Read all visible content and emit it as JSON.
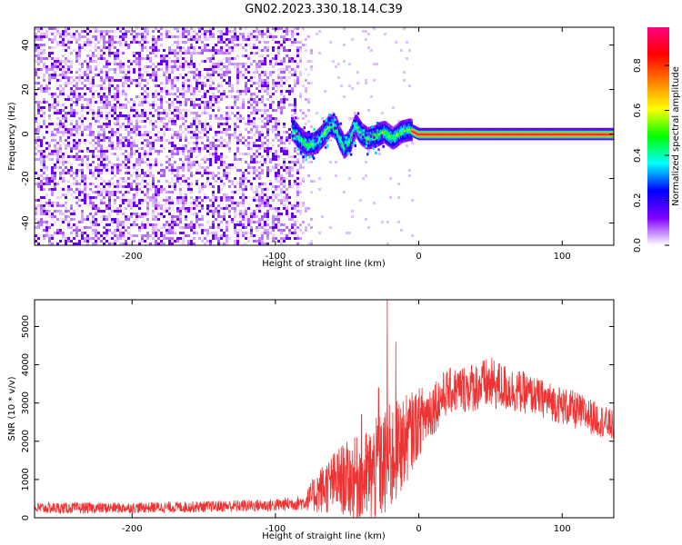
{
  "title": "GN02.2023.330.18.14.C39",
  "chart_data": [
    {
      "type": "heatmap",
      "xlabel": "Height of straight line (km)",
      "ylabel": "Frequency (Hz)",
      "xlim": [
        -268,
        136
      ],
      "ylim": [
        -50,
        48
      ],
      "x_ticks": [
        -200,
        -100,
        0,
        100
      ],
      "y_ticks": [
        -40,
        -20,
        0,
        20,
        40
      ],
      "x_tick_labels": [
        "-200",
        "-100",
        "0",
        "100"
      ],
      "y_tick_labels": [
        "-40",
        "-20",
        "0",
        "20",
        "40"
      ],
      "grid": false,
      "colorbar": {
        "label": "Normalized spectral amplitude",
        "range": [
          0,
          0.97
        ],
        "ticks": [
          0,
          0.2,
          0.4,
          0.6,
          0.8
        ],
        "tick_labels": [
          "0.0",
          "0.2",
          "0.4",
          "0.6",
          "0.8"
        ],
        "colors": [
          "#ffffff",
          "#8000ff",
          "#0000ff",
          "#00ffff",
          "#00ff00",
          "#ffff00",
          "#ff8000",
          "#ff0000",
          "#ff0080"
        ]
      },
      "regions": [
        {
          "x_range": [
            -268,
            -85
          ],
          "freq_range": [
            -50,
            48
          ],
          "amplitude": [
            0.0,
            0.1
          ]
        },
        {
          "x_range": [
            -85,
            -75
          ],
          "freq_range": [
            -50,
            48
          ],
          "amplitude": [
            0.0,
            0.03
          ]
        },
        {
          "x_range": [
            -90,
            -5
          ],
          "freq_range": [
            -12,
            8
          ],
          "amplitude": [
            0.2,
            0.5
          ]
        },
        {
          "x_range": [
            -5,
            136
          ],
          "freq_range": [
            -1,
            1
          ],
          "amplitude": [
            0.9,
            0.97
          ]
        }
      ],
      "ridge": [
        {
          "x": -88,
          "f": 2
        },
        {
          "x": -83,
          "f": -2
        },
        {
          "x": -78,
          "f": -5
        },
        {
          "x": -72,
          "f": -4
        },
        {
          "x": -66,
          "f": 0
        },
        {
          "x": -62,
          "f": 4
        },
        {
          "x": -58,
          "f": 3
        },
        {
          "x": -55,
          "f": -2
        },
        {
          "x": -52,
          "f": -6
        },
        {
          "x": -48,
          "f": -3
        },
        {
          "x": -44,
          "f": 4
        },
        {
          "x": -40,
          "f": 0
        },
        {
          "x": -36,
          "f": -2
        },
        {
          "x": -30,
          "f": -1
        },
        {
          "x": -24,
          "f": 1
        },
        {
          "x": -18,
          "f": -2
        },
        {
          "x": -12,
          "f": 1
        },
        {
          "x": -6,
          "f": 2
        },
        {
          "x": 0,
          "f": 0
        },
        {
          "x": 20,
          "f": 0
        },
        {
          "x": 60,
          "f": 0
        },
        {
          "x": 136,
          "f": 0
        }
      ]
    },
    {
      "type": "line",
      "xlabel": "Height of straight line (km)",
      "ylabel": "SNR (10 * v/v)",
      "xlim": [
        -268,
        136
      ],
      "ylim": [
        0,
        5700
      ],
      "x_ticks": [
        -200,
        -100,
        0,
        100
      ],
      "y_ticks": [
        0,
        1000,
        2000,
        3000,
        4000,
        5000
      ],
      "x_tick_labels": [
        "-200",
        "-100",
        "0",
        "100"
      ],
      "y_tick_labels": [
        "0",
        "1000",
        "2000",
        "3000",
        "4000",
        "5000"
      ],
      "grid": false,
      "color": "#ee3333",
      "envelope": [
        {
          "x": -268,
          "mean": 250,
          "spread": 150
        },
        {
          "x": -200,
          "mean": 260,
          "spread": 140
        },
        {
          "x": -150,
          "mean": 290,
          "spread": 150
        },
        {
          "x": -100,
          "mean": 330,
          "spread": 170
        },
        {
          "x": -80,
          "mean": 400,
          "spread": 200
        },
        {
          "x": -70,
          "mean": 700,
          "spread": 600
        },
        {
          "x": -55,
          "mean": 1000,
          "spread": 900
        },
        {
          "x": -40,
          "mean": 1000,
          "spread": 1200
        },
        {
          "x": -30,
          "mean": 1200,
          "spread": 1400
        },
        {
          "x": -20,
          "mean": 1500,
          "spread": 1500
        },
        {
          "x": 0,
          "mean": 2500,
          "spread": 900
        },
        {
          "x": 20,
          "mean": 3300,
          "spread": 600
        },
        {
          "x": 50,
          "mean": 3500,
          "spread": 700
        },
        {
          "x": 80,
          "mean": 3200,
          "spread": 500
        },
        {
          "x": 110,
          "mean": 2800,
          "spread": 500
        },
        {
          "x": 136,
          "mean": 2400,
          "spread": 400
        }
      ],
      "peaks": [
        {
          "x": -22,
          "y": 5700
        },
        {
          "x": -16,
          "y": 4600
        },
        {
          "x": -28,
          "y": 3400
        },
        {
          "x": -40,
          "y": 2700
        },
        {
          "x": -12,
          "y": 2600
        }
      ]
    }
  ]
}
